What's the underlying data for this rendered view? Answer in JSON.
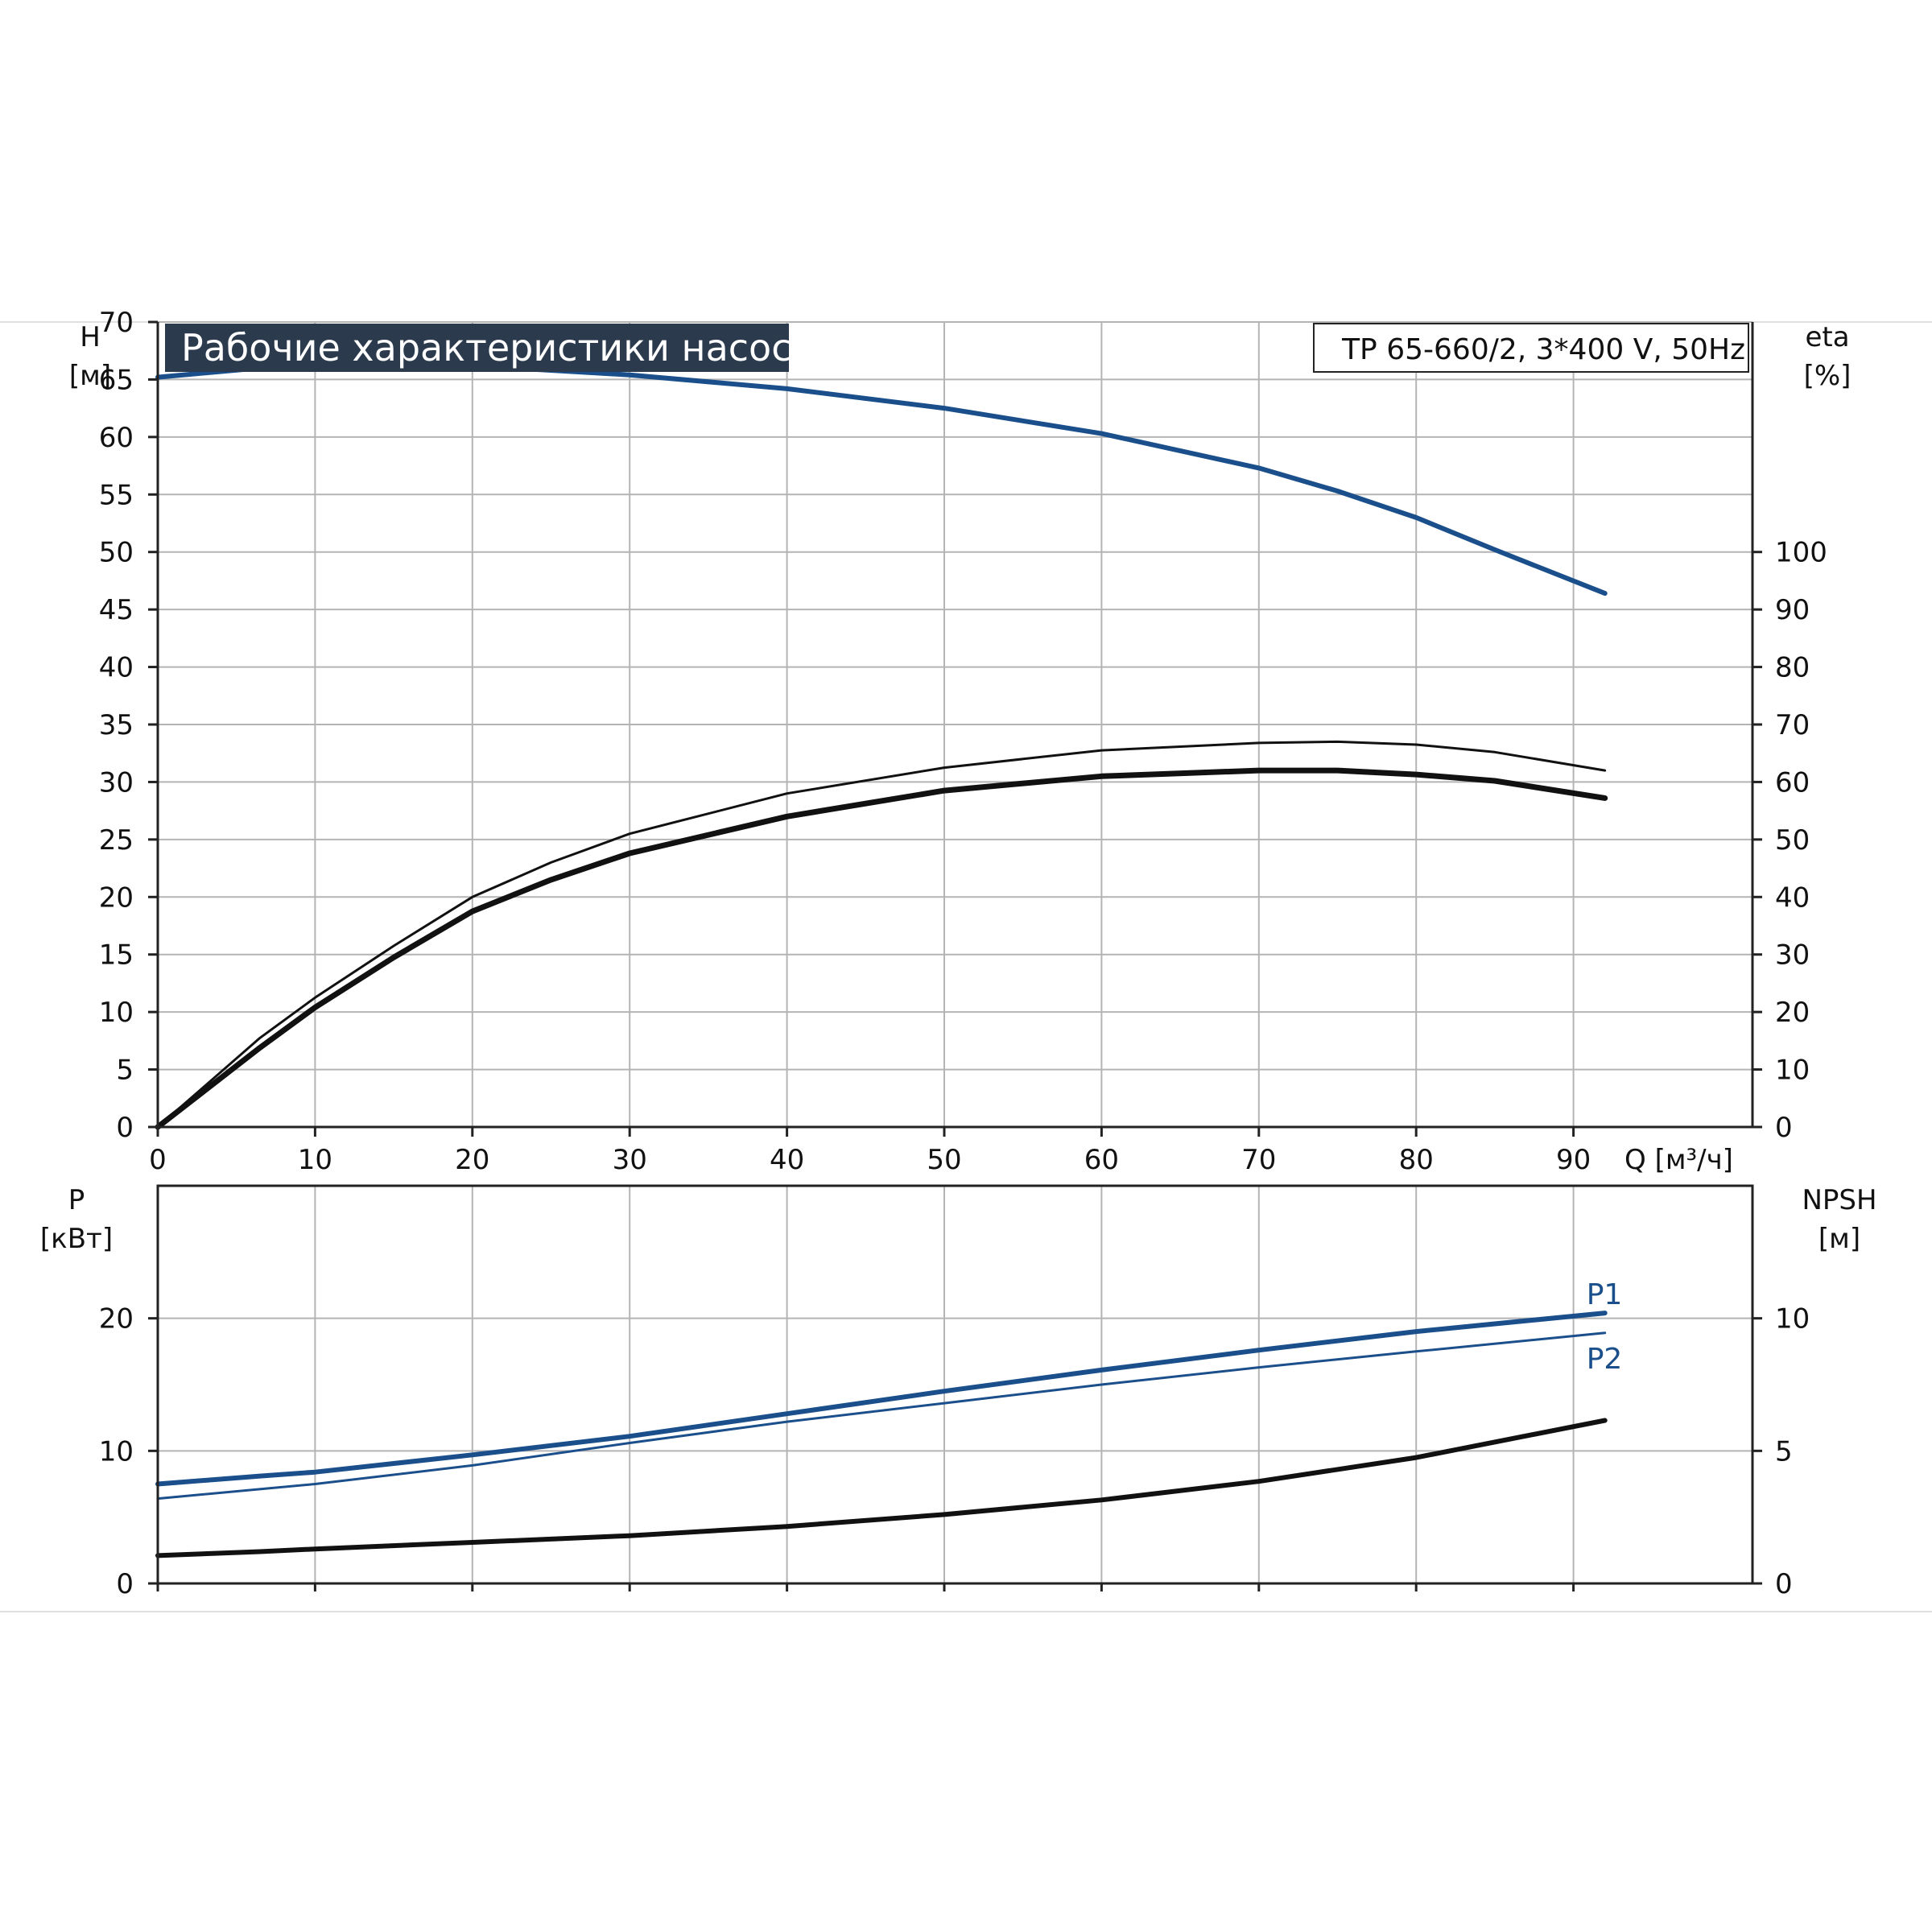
{
  "chart_data": [
    {
      "type": "line",
      "title": "Рабочие характеристики насоса",
      "subtitle": "TP 65-660/2, 3*400 V, 50Hz",
      "xlabel": "Q [м³/ч]",
      "xlim": [
        0,
        100
      ],
      "x_ticks": [
        "0",
        "10",
        "20",
        "30",
        "40",
        "50",
        "60",
        "70",
        "80",
        "90"
      ],
      "y_left": {
        "label_line1": "H",
        "label_line2": "[м]",
        "lim": [
          0,
          70
        ],
        "ticks": [
          "0",
          "5",
          "10",
          "15",
          "20",
          "25",
          "30",
          "35",
          "40",
          "45",
          "50",
          "55",
          "60",
          "65",
          "70"
        ]
      },
      "y_right": {
        "label_line1": "eta",
        "label_line2": "[%]",
        "lim": [
          0,
          140
        ],
        "ticks": [
          "0",
          "10",
          "20",
          "30",
          "40",
          "50",
          "60",
          "70",
          "80",
          "90",
          "100"
        ]
      },
      "grid": true,
      "colors": {
        "blue": "#1a4f8b",
        "black": "#111111"
      },
      "series": [
        {
          "axis": "left",
          "color": "#1a4f8b",
          "width": 6,
          "x": [
            0,
            6.5,
            10,
            15,
            20,
            30,
            40,
            50,
            60,
            70,
            75,
            80,
            85,
            92
          ],
          "y": [
            65.2,
            66.0,
            66.2,
            66.3,
            66.2,
            65.4,
            64.2,
            62.5,
            60.3,
            57.3,
            55.3,
            53.0,
            50.2,
            46.4
          ]
        },
        {
          "axis": "right",
          "color": "#111111",
          "width": 3,
          "x": [
            0,
            6.5,
            10,
            15,
            20,
            25,
            30,
            40,
            50,
            60,
            70,
            75,
            80,
            85,
            92
          ],
          "y": [
            0,
            15.5,
            22.5,
            31.5,
            40.0,
            46.0,
            51.0,
            58.0,
            62.5,
            65.5,
            66.8,
            67.0,
            66.5,
            65.2,
            62.0
          ]
        },
        {
          "axis": "right",
          "color": "#111111",
          "width": 7,
          "x": [
            0,
            6.5,
            10,
            15,
            20,
            25,
            30,
            40,
            50,
            60,
            70,
            75,
            80,
            85,
            92
          ],
          "y": [
            0,
            13.8,
            20.8,
            29.5,
            37.5,
            43.0,
            47.6,
            54.0,
            58.5,
            61.0,
            62.0,
            62.0,
            61.3,
            60.2,
            57.2
          ]
        }
      ]
    },
    {
      "type": "line",
      "xlim": [
        0,
        100
      ],
      "y_left": {
        "label_line1": "P",
        "label_line2": "[кВт]",
        "lim": [
          0,
          30
        ],
        "ticks": [
          "0",
          "10",
          "20"
        ]
      },
      "y_right": {
        "label_line1": "NPSH",
        "label_line2": "[м]",
        "lim": [
          0,
          15
        ],
        "ticks": [
          "0",
          "5",
          "10"
        ]
      },
      "grid": true,
      "series": [
        {
          "name": "P1",
          "axis": "left",
          "color": "#1a4f8b",
          "width": 6,
          "x": [
            0,
            6.5,
            10,
            20,
            30,
            40,
            50,
            60,
            70,
            80,
            92
          ],
          "y": [
            7.5,
            8.1,
            8.4,
            9.7,
            11.1,
            12.8,
            14.5,
            16.1,
            17.6,
            19.0,
            20.4
          ]
        },
        {
          "name": "P2",
          "axis": "left",
          "color": "#1a4f8b",
          "width": 3,
          "x": [
            0,
            10,
            20,
            30,
            40,
            50,
            60,
            70,
            80,
            92
          ],
          "y": [
            6.4,
            7.5,
            8.9,
            10.6,
            12.2,
            13.6,
            15.0,
            16.3,
            17.5,
            18.9
          ]
        },
        {
          "axis": "right",
          "color": "#111111",
          "width": 6,
          "x": [
            0,
            6.5,
            10,
            20,
            30,
            40,
            50,
            60,
            70,
            80,
            92
          ],
          "y": [
            1.05,
            1.2,
            1.3,
            1.55,
            1.8,
            2.15,
            2.6,
            3.15,
            3.85,
            4.75,
            6.15
          ]
        }
      ]
    }
  ]
}
